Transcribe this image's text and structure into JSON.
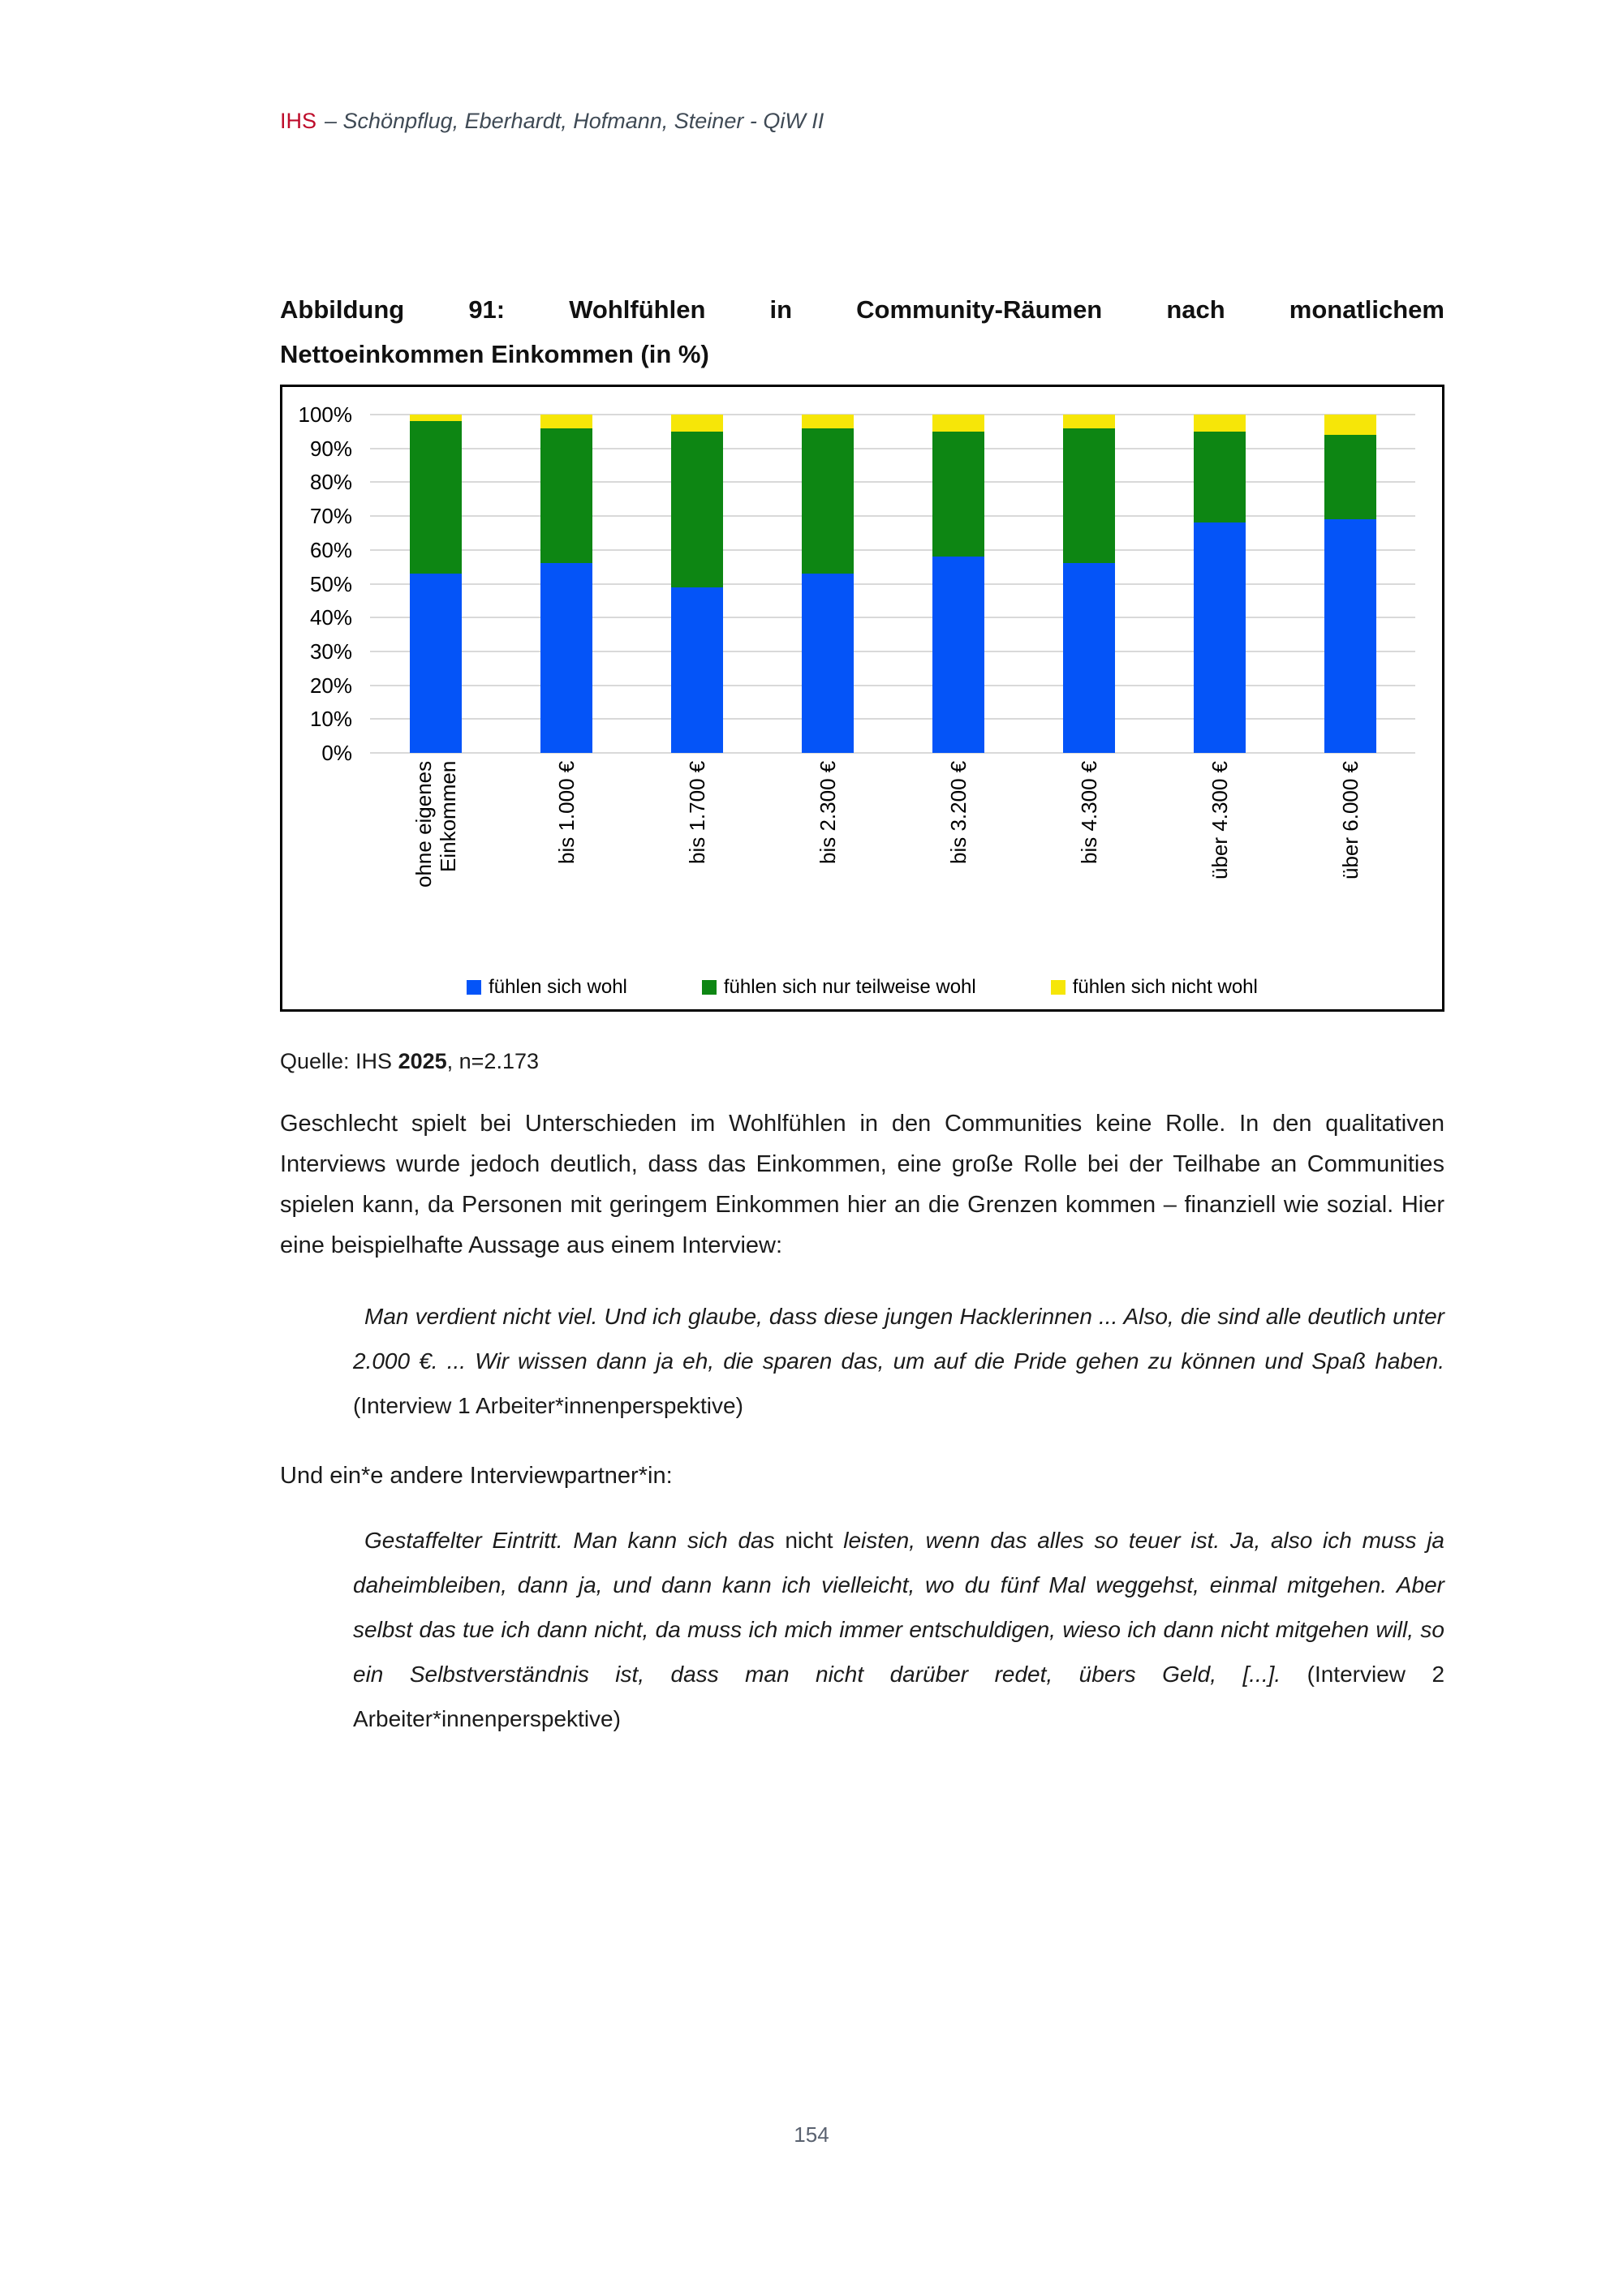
{
  "header": {
    "brand": "IHS",
    "rest": "– Schönpflug, Eberhardt, Hofmann, Steiner - QiW II"
  },
  "figure": {
    "title_line1": "Abbildung 91: Wohlfühlen in Community-Räumen nach monatlichem",
    "title_line2": "Nettoeinkommen Einkommen (in %)"
  },
  "chart_data": {
    "type": "bar",
    "stacked": true,
    "title": "Abbildung 91: Wohlfühlen in Community-Räumen nach monatlichem Nettoeinkommen Einkommen (in %)",
    "categories": [
      "ohne eigenes Einkommen",
      "bis 1.000 €",
      "bis 1.700 €",
      "bis 2.300 €",
      "bis 3.200 €",
      "bis 4.300 €",
      "über 4.300 €",
      "über 6.000 €"
    ],
    "series": [
      {
        "name": "fühlen sich wohl",
        "color": "#0454f8",
        "values": [
          53,
          56,
          49,
          53,
          58,
          56,
          68,
          69
        ]
      },
      {
        "name": "fühlen sich nur teilweise wohl",
        "color": "#0d8613",
        "values": [
          45,
          40,
          46,
          43,
          37,
          40,
          27,
          25
        ]
      },
      {
        "name": "fühlen sich nicht wohl",
        "color": "#f6e608",
        "values": [
          2,
          4,
          5,
          4,
          5,
          4,
          5,
          6
        ]
      }
    ],
    "y_axis": {
      "min": 0,
      "max": 100,
      "step": 10,
      "ticks": [
        "0%",
        "10%",
        "20%",
        "30%",
        "40%",
        "50%",
        "60%",
        "70%",
        "80%",
        "90%",
        "100%"
      ]
    },
    "xlabel": "",
    "ylabel": "",
    "grid": true,
    "gridline_color": "#d9d9d9",
    "legend_position": "bottom"
  },
  "source": {
    "prefix": "Quelle: IHS ",
    "year_bold": "2025",
    "suffix": ", n=2.173"
  },
  "body": {
    "paragraph": "Geschlecht spielt bei Unterschieden im Wohlfühlen in den Communities keine Rolle. In den qualitativen Interviews wurde jedoch deutlich, dass das Einkommen, eine große Rolle bei der Teilhabe an Communities spielen kann, da Personen mit geringem Einkommen hier an die Grenzen kommen – finanziell wie sozial. Hier eine beispielhafte Aussage aus einem Interview:",
    "quote1_italic": "Man verdient nicht viel. Und ich glaube, dass diese jungen Hacklerinnen ... Also, die sind alle deutlich unter 2.000 €. ... Wir wissen dann ja eh, die sparen das, um auf die Pride gehen zu können und Spaß haben.",
    "quote1_attribution": "(Interview 1 Arbeiter*innenperspektive)",
    "interlude": "Und ein*e andere Interviewpartner*in:",
    "quote2_part1_italic": "Gestaffelter Eintritt. Man kann sich das ",
    "quote2_upright": "nicht",
    "quote2_part2_italic": " leisten, wenn das alles so teuer ist. Ja, also ich muss ja daheimbleiben, dann ja, und dann kann ich vielleicht, wo du fünf Mal weggehst, einmal mitgehen. Aber selbst das tue ich dann nicht, da muss ich mich immer entschuldigen, wieso ich dann nicht mitgehen will, so ein Selbstverständnis ist, dass man nicht darüber redet, übers Geld, [...].",
    "quote2_attribution": "(Interview 2 Arbeiter*innenperspektive)"
  },
  "footer": {
    "page_number": "154"
  }
}
